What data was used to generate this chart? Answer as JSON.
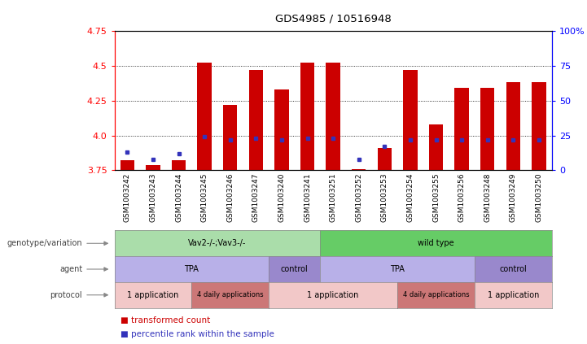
{
  "title": "GDS4985 / 10516948",
  "samples": [
    "GSM1003242",
    "GSM1003243",
    "GSM1003244",
    "GSM1003245",
    "GSM1003246",
    "GSM1003247",
    "GSM1003240",
    "GSM1003241",
    "GSM1003251",
    "GSM1003252",
    "GSM1003253",
    "GSM1003254",
    "GSM1003255",
    "GSM1003256",
    "GSM1003248",
    "GSM1003249",
    "GSM1003250"
  ],
  "red_values": [
    3.82,
    3.79,
    3.82,
    4.52,
    4.22,
    4.47,
    4.33,
    4.52,
    4.52,
    3.76,
    3.91,
    4.47,
    4.08,
    4.34,
    4.34,
    4.38,
    4.38
  ],
  "blue_values": [
    3.88,
    3.83,
    3.87,
    3.99,
    3.97,
    3.98,
    3.97,
    3.98,
    3.98,
    3.83,
    3.92,
    3.97,
    3.97,
    3.97,
    3.97,
    3.97,
    3.97
  ],
  "y_min": 3.75,
  "y_max": 4.75,
  "y_ticks_left": [
    3.75,
    4.0,
    4.25,
    4.5,
    4.75
  ],
  "y_ticks_right": [
    0,
    25,
    50,
    75,
    100
  ],
  "bar_color": "#cc0000",
  "blue_color": "#3333bb",
  "genotype_rows": [
    {
      "label": "Vav2-/-;Vav3-/-",
      "start": 0,
      "end": 8,
      "color": "#aaddaa"
    },
    {
      "label": "wild type",
      "start": 8,
      "end": 17,
      "color": "#66cc66"
    }
  ],
  "agent_rows": [
    {
      "label": "TPA",
      "start": 0,
      "end": 6,
      "color": "#b8b0e8"
    },
    {
      "label": "control",
      "start": 6,
      "end": 8,
      "color": "#9988cc"
    },
    {
      "label": "TPA",
      "start": 8,
      "end": 14,
      "color": "#b8b0e8"
    },
    {
      "label": "control",
      "start": 14,
      "end": 17,
      "color": "#9988cc"
    }
  ],
  "protocol_rows": [
    {
      "label": "1 application",
      "start": 0,
      "end": 3,
      "color": "#f2c8c8"
    },
    {
      "label": "4 daily applications",
      "start": 3,
      "end": 6,
      "color": "#cc7777"
    },
    {
      "label": "1 application",
      "start": 6,
      "end": 11,
      "color": "#f2c8c8"
    },
    {
      "label": "4 daily applications",
      "start": 11,
      "end": 14,
      "color": "#cc7777"
    },
    {
      "label": "1 application",
      "start": 14,
      "end": 17,
      "color": "#f2c8c8"
    }
  ],
  "legend_red": "transformed count",
  "legend_blue": "percentile rank within the sample",
  "row_labels": [
    "genotype/variation",
    "agent",
    "protocol"
  ],
  "row_label_color": "#888888"
}
